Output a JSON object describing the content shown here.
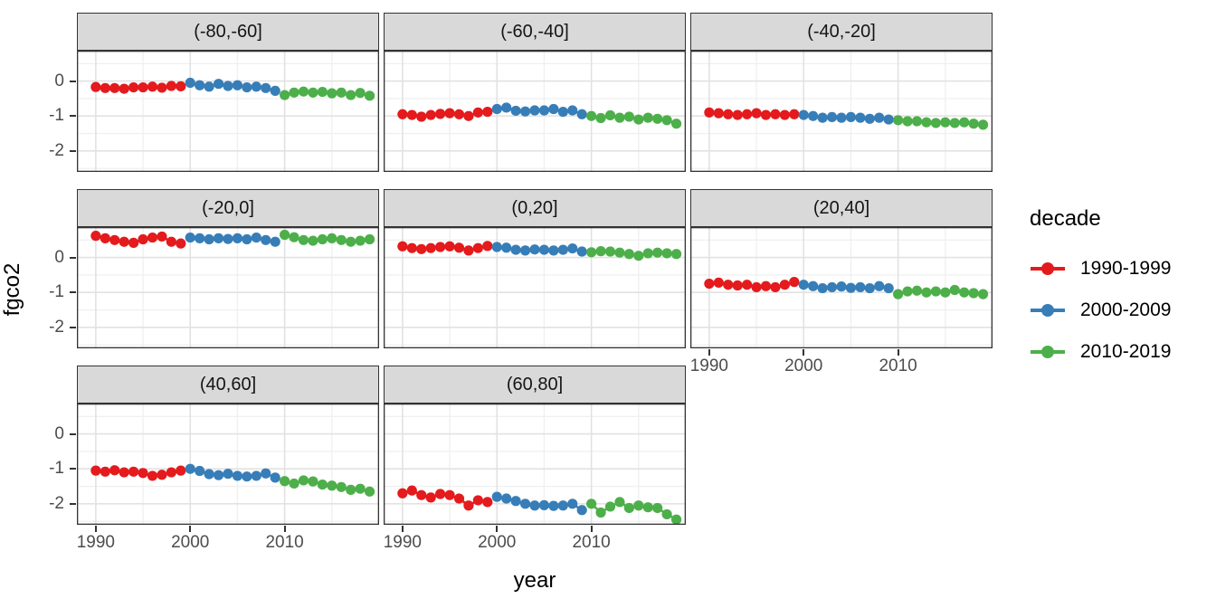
{
  "axes": {
    "x_title": "year",
    "y_title": "fgco2",
    "x_tick_labels": [
      "1990",
      "2000",
      "2010"
    ],
    "y_tick_labels": [
      "0",
      "-1",
      "-2"
    ]
  },
  "legend": {
    "title": "decade",
    "entries": [
      {
        "label": "1990-1999",
        "color": "#E41A1C"
      },
      {
        "label": "2000-2009",
        "color": "#377EB8"
      },
      {
        "label": "2010-2019",
        "color": "#4DAF4A"
      }
    ]
  },
  "colors": {
    "red": "#E41A1C",
    "blue": "#377EB8",
    "green": "#4DAF4A",
    "strip_fill": "#d9d9d9",
    "panel_border": "#333333",
    "grid_major": "#e2e2e2",
    "grid_minor": "#f0f0f0",
    "tick_text": "#4d4d4d"
  },
  "chart_data": {
    "type": "scatter",
    "title": "",
    "xlabel": "year",
    "ylabel": "fgco2",
    "legend_position": "right",
    "grid": "on",
    "xlim": [
      1988.0,
      2020.0
    ],
    "ylim": [
      -2.6,
      0.87
    ],
    "x_ticks": [
      1990,
      2000,
      2010
    ],
    "x_minor": [
      1995,
      2005,
      2015
    ],
    "y_ticks": [
      0,
      -1,
      -2
    ],
    "y_minor": [
      0.5,
      -0.5,
      -1.5,
      -2.5
    ],
    "series_names": [
      "1990-1999",
      "2000-2009",
      "2010-2019"
    ],
    "series_colors": [
      "#E41A1C",
      "#377EB8",
      "#4DAF4A"
    ],
    "series_years_start": [
      1990,
      2000,
      2010
    ],
    "facets": [
      {
        "label": "(-80,-60]",
        "series": [
          [
            -0.17,
            -0.2,
            -0.2,
            -0.22,
            -0.18,
            -0.18,
            -0.16,
            -0.19,
            -0.14,
            -0.15
          ],
          [
            -0.05,
            -0.12,
            -0.16,
            -0.08,
            -0.14,
            -0.12,
            -0.18,
            -0.16,
            -0.2,
            -0.28
          ],
          [
            -0.4,
            -0.33,
            -0.3,
            -0.33,
            -0.31,
            -0.35,
            -0.33,
            -0.4,
            -0.34,
            -0.42
          ]
        ]
      },
      {
        "label": "(-60,-40]",
        "series": [
          [
            -0.95,
            -0.97,
            -1.02,
            -0.97,
            -0.94,
            -0.92,
            -0.95,
            -1.0,
            -0.9,
            -0.88
          ],
          [
            -0.8,
            -0.76,
            -0.85,
            -0.87,
            -0.84,
            -0.84,
            -0.8,
            -0.88,
            -0.84,
            -0.95
          ],
          [
            -1.0,
            -1.06,
            -0.98,
            -1.05,
            -1.02,
            -1.1,
            -1.05,
            -1.08,
            -1.12,
            -1.22
          ]
        ]
      },
      {
        "label": "(-40,-20]",
        "series": [
          [
            -0.9,
            -0.92,
            -0.95,
            -0.97,
            -0.95,
            -0.92,
            -0.97,
            -0.95,
            -0.97,
            -0.95
          ],
          [
            -0.97,
            -1.0,
            -1.05,
            -1.03,
            -1.05,
            -1.03,
            -1.05,
            -1.08,
            -1.05,
            -1.1
          ],
          [
            -1.12,
            -1.15,
            -1.15,
            -1.18,
            -1.2,
            -1.18,
            -1.2,
            -1.18,
            -1.22,
            -1.25
          ]
        ]
      },
      {
        "label": "(-20,0]",
        "series": [
          [
            0.62,
            0.55,
            0.5,
            0.45,
            0.42,
            0.52,
            0.57,
            0.6,
            0.45,
            0.4
          ],
          [
            0.57,
            0.55,
            0.52,
            0.55,
            0.53,
            0.55,
            0.52,
            0.57,
            0.5,
            0.45
          ],
          [
            0.65,
            0.58,
            0.5,
            0.48,
            0.52,
            0.55,
            0.5,
            0.45,
            0.48,
            0.52
          ]
        ]
      },
      {
        "label": "(0,20]",
        "series": [
          [
            0.32,
            0.27,
            0.24,
            0.27,
            0.3,
            0.32,
            0.28,
            0.2,
            0.27,
            0.33
          ],
          [
            0.3,
            0.28,
            0.22,
            0.2,
            0.23,
            0.22,
            0.2,
            0.22,
            0.26,
            0.17
          ],
          [
            0.15,
            0.18,
            0.17,
            0.14,
            0.1,
            0.05,
            0.12,
            0.14,
            0.12,
            0.1
          ]
        ]
      },
      {
        "label": "(20,40]",
        "series": [
          [
            -0.75,
            -0.72,
            -0.78,
            -0.8,
            -0.78,
            -0.85,
            -0.82,
            -0.85,
            -0.78,
            -0.7
          ],
          [
            -0.78,
            -0.82,
            -0.88,
            -0.85,
            -0.83,
            -0.87,
            -0.85,
            -0.88,
            -0.82,
            -0.88
          ],
          [
            -1.05,
            -0.97,
            -0.95,
            -1.0,
            -0.97,
            -1.0,
            -0.93,
            -1.0,
            -1.02,
            -1.05
          ]
        ]
      },
      {
        "label": "(40,60]",
        "series": [
          [
            -1.05,
            -1.08,
            -1.04,
            -1.1,
            -1.08,
            -1.12,
            -1.2,
            -1.17,
            -1.1,
            -1.05
          ],
          [
            -1.0,
            -1.06,
            -1.15,
            -1.18,
            -1.14,
            -1.2,
            -1.22,
            -1.2,
            -1.13,
            -1.25
          ],
          [
            -1.35,
            -1.42,
            -1.33,
            -1.36,
            -1.45,
            -1.48,
            -1.52,
            -1.6,
            -1.57,
            -1.65
          ]
        ]
      },
      {
        "label": "(60,80]",
        "series": [
          [
            -1.7,
            -1.62,
            -1.75,
            -1.82,
            -1.72,
            -1.75,
            -1.85,
            -2.05,
            -1.9,
            -1.95
          ],
          [
            -1.8,
            -1.85,
            -1.92,
            -2.0,
            -2.05,
            -2.04,
            -2.06,
            -2.05,
            -2.0,
            -2.18
          ],
          [
            -2.0,
            -2.25,
            -2.08,
            -1.95,
            -2.12,
            -2.05,
            -2.1,
            -2.12,
            -2.3,
            -2.45
          ]
        ]
      }
    ]
  }
}
